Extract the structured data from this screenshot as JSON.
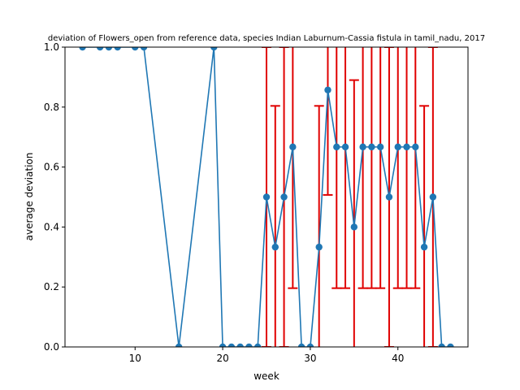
{
  "chart_data": {
    "type": "line",
    "title": "deviation of Flowers_open from reference data, species Indian Laburnum-Cassia fistula in tamil_nadu, 2017",
    "xlabel": "week",
    "ylabel": "average deviation",
    "xlim": [
      2,
      48
    ],
    "ylim": [
      0,
      1.0
    ],
    "xticks": [
      10,
      20,
      30,
      40
    ],
    "yticks": [
      0.0,
      0.2,
      0.4,
      0.6,
      0.8,
      1.0
    ],
    "ytick_labels": [
      "0.0",
      "0.2",
      "0.4",
      "0.6",
      "0.8",
      "1.0"
    ],
    "grid": false,
    "series": [
      {
        "color": "#1f77b4",
        "error_color": "#e00000",
        "x": [
          4,
          6,
          7,
          8,
          10,
          11,
          15,
          19,
          20,
          21,
          22,
          23,
          24,
          25,
          26,
          27,
          28,
          29,
          30,
          31,
          32,
          33,
          34,
          35,
          36,
          37,
          38,
          39,
          40,
          41,
          42,
          43,
          44,
          45,
          46
        ],
        "y": [
          1.0,
          1.0,
          1.0,
          1.0,
          1.0,
          1.0,
          0.0,
          1.0,
          0.0,
          0.0,
          0.0,
          0.0,
          0.0,
          0.5,
          0.333,
          0.5,
          0.667,
          0.0,
          0.0,
          0.333,
          0.857,
          0.667,
          0.667,
          0.4,
          0.667,
          0.667,
          0.667,
          0.5,
          0.667,
          0.667,
          0.667,
          0.333,
          0.5,
          0.0,
          0.0
        ],
        "err": [
          0,
          0,
          0,
          0,
          0,
          0,
          0,
          0,
          0,
          0,
          0,
          0,
          0,
          0.5,
          0.471,
          0.5,
          0.471,
          0,
          0,
          0.471,
          0.35,
          0.471,
          0.471,
          0.49,
          0.471,
          0.471,
          0.471,
          0.5,
          0.471,
          0.471,
          0.471,
          0.471,
          0.5,
          0,
          0
        ]
      }
    ]
  }
}
